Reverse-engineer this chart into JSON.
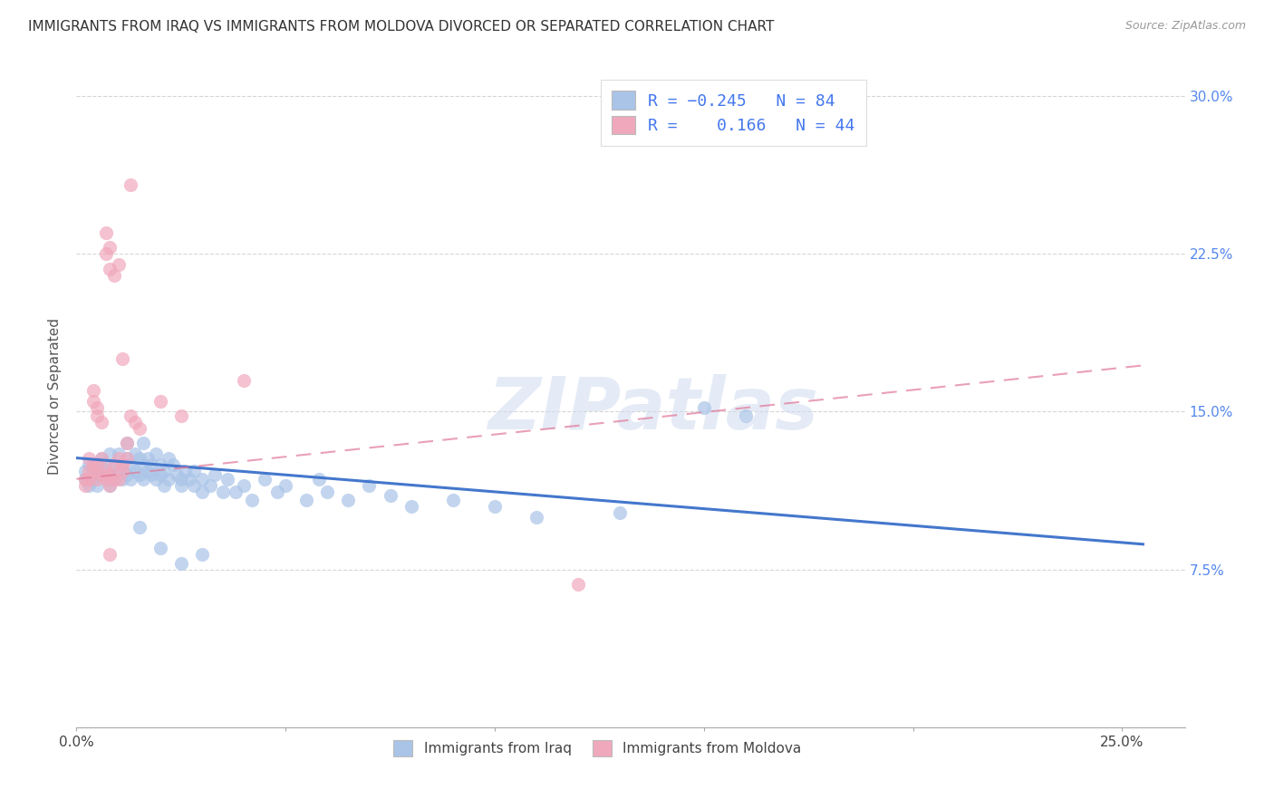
{
  "title": "IMMIGRANTS FROM IRAQ VS IMMIGRANTS FROM MOLDOVA DIVORCED OR SEPARATED CORRELATION CHART",
  "source": "Source: ZipAtlas.com",
  "ylabel_left": "Divorced or Separated",
  "xlim": [
    0.0,
    0.265
  ],
  "ylim": [
    0.0,
    0.315
  ],
  "iraq_color": "#aac4e8",
  "moldova_color": "#f0a8bc",
  "iraq_line_color": "#4477cc",
  "moldova_line_color": "#e07898",
  "R_iraq": -0.245,
  "N_iraq": 84,
  "R_moldova": 0.166,
  "N_moldova": 44,
  "watermark": "ZIPatlas",
  "iraq_line": [
    [
      0.0,
      0.128
    ],
    [
      0.255,
      0.087
    ]
  ],
  "moldova_line": [
    [
      0.0,
      0.118
    ],
    [
      0.255,
      0.172
    ]
  ],
  "iraq_scatter": [
    [
      0.002,
      0.118
    ],
    [
      0.002,
      0.122
    ],
    [
      0.003,
      0.115
    ],
    [
      0.003,
      0.125
    ],
    [
      0.004,
      0.12
    ],
    [
      0.004,
      0.118
    ],
    [
      0.005,
      0.125
    ],
    [
      0.005,
      0.122
    ],
    [
      0.005,
      0.115
    ],
    [
      0.006,
      0.12
    ],
    [
      0.006,
      0.128
    ],
    [
      0.007,
      0.118
    ],
    [
      0.007,
      0.125
    ],
    [
      0.007,
      0.122
    ],
    [
      0.008,
      0.12
    ],
    [
      0.008,
      0.13
    ],
    [
      0.008,
      0.115
    ],
    [
      0.009,
      0.125
    ],
    [
      0.009,
      0.118
    ],
    [
      0.01,
      0.122
    ],
    [
      0.01,
      0.13
    ],
    [
      0.011,
      0.118
    ],
    [
      0.011,
      0.125
    ],
    [
      0.012,
      0.135
    ],
    [
      0.012,
      0.128
    ],
    [
      0.012,
      0.12
    ],
    [
      0.013,
      0.125
    ],
    [
      0.013,
      0.118
    ],
    [
      0.014,
      0.13
    ],
    [
      0.014,
      0.122
    ],
    [
      0.015,
      0.12
    ],
    [
      0.015,
      0.128
    ],
    [
      0.016,
      0.125
    ],
    [
      0.016,
      0.118
    ],
    [
      0.016,
      0.135
    ],
    [
      0.017,
      0.122
    ],
    [
      0.017,
      0.128
    ],
    [
      0.018,
      0.12
    ],
    [
      0.018,
      0.125
    ],
    [
      0.019,
      0.118
    ],
    [
      0.019,
      0.13
    ],
    [
      0.02,
      0.125
    ],
    [
      0.02,
      0.12
    ],
    [
      0.021,
      0.115
    ],
    [
      0.021,
      0.122
    ],
    [
      0.022,
      0.128
    ],
    [
      0.022,
      0.118
    ],
    [
      0.023,
      0.125
    ],
    [
      0.024,
      0.12
    ],
    [
      0.025,
      0.118
    ],
    [
      0.025,
      0.115
    ],
    [
      0.026,
      0.122
    ],
    [
      0.027,
      0.118
    ],
    [
      0.028,
      0.115
    ],
    [
      0.028,
      0.122
    ],
    [
      0.03,
      0.118
    ],
    [
      0.03,
      0.112
    ],
    [
      0.032,
      0.115
    ],
    [
      0.033,
      0.12
    ],
    [
      0.035,
      0.112
    ],
    [
      0.036,
      0.118
    ],
    [
      0.038,
      0.112
    ],
    [
      0.04,
      0.115
    ],
    [
      0.042,
      0.108
    ],
    [
      0.045,
      0.118
    ],
    [
      0.048,
      0.112
    ],
    [
      0.05,
      0.115
    ],
    [
      0.055,
      0.108
    ],
    [
      0.058,
      0.118
    ],
    [
      0.06,
      0.112
    ],
    [
      0.065,
      0.108
    ],
    [
      0.07,
      0.115
    ],
    [
      0.075,
      0.11
    ],
    [
      0.08,
      0.105
    ],
    [
      0.09,
      0.108
    ],
    [
      0.1,
      0.105
    ],
    [
      0.11,
      0.1
    ],
    [
      0.13,
      0.102
    ],
    [
      0.15,
      0.152
    ],
    [
      0.16,
      0.148
    ],
    [
      0.015,
      0.095
    ],
    [
      0.02,
      0.085
    ],
    [
      0.025,
      0.078
    ],
    [
      0.03,
      0.082
    ]
  ],
  "moldova_scatter": [
    [
      0.002,
      0.115
    ],
    [
      0.002,
      0.118
    ],
    [
      0.003,
      0.122
    ],
    [
      0.003,
      0.128
    ],
    [
      0.003,
      0.118
    ],
    [
      0.004,
      0.122
    ],
    [
      0.004,
      0.125
    ],
    [
      0.004,
      0.155
    ],
    [
      0.004,
      0.16
    ],
    [
      0.005,
      0.118
    ],
    [
      0.005,
      0.125
    ],
    [
      0.005,
      0.148
    ],
    [
      0.005,
      0.152
    ],
    [
      0.006,
      0.12
    ],
    [
      0.006,
      0.128
    ],
    [
      0.006,
      0.145
    ],
    [
      0.007,
      0.225
    ],
    [
      0.007,
      0.235
    ],
    [
      0.007,
      0.122
    ],
    [
      0.007,
      0.118
    ],
    [
      0.008,
      0.228
    ],
    [
      0.008,
      0.218
    ],
    [
      0.008,
      0.12
    ],
    [
      0.008,
      0.115
    ],
    [
      0.008,
      0.082
    ],
    [
      0.009,
      0.215
    ],
    [
      0.009,
      0.125
    ],
    [
      0.009,
      0.118
    ],
    [
      0.01,
      0.22
    ],
    [
      0.01,
      0.128
    ],
    [
      0.01,
      0.118
    ],
    [
      0.011,
      0.175
    ],
    [
      0.011,
      0.125
    ],
    [
      0.011,
      0.122
    ],
    [
      0.012,
      0.135
    ],
    [
      0.012,
      0.128
    ],
    [
      0.013,
      0.258
    ],
    [
      0.013,
      0.148
    ],
    [
      0.014,
      0.145
    ],
    [
      0.015,
      0.142
    ],
    [
      0.02,
      0.155
    ],
    [
      0.025,
      0.148
    ],
    [
      0.04,
      0.165
    ],
    [
      0.12,
      0.068
    ]
  ]
}
